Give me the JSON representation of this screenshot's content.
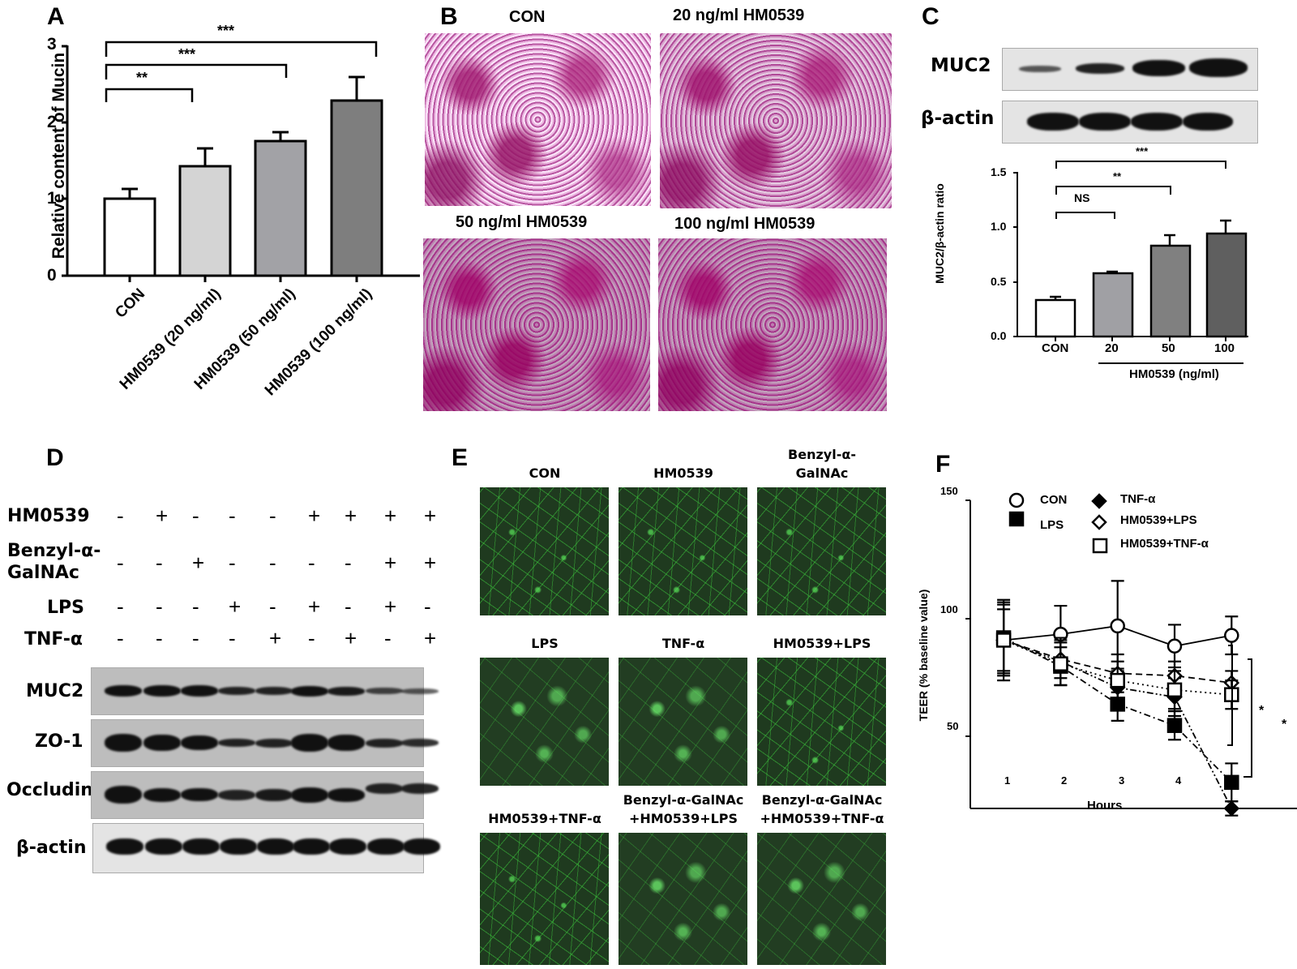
{
  "panels": {
    "A": {
      "letter": "A",
      "ylabel": "Relative content of Mucin",
      "yticks": [
        "0",
        "1",
        "2",
        "3"
      ],
      "categories": [
        "CON",
        "HM0539 (20 ng/ml)",
        "HM0539 (50 ng/ml)",
        "HM0539 (100 ng/ml)"
      ],
      "significance": [
        "**",
        "***",
        "***"
      ]
    },
    "B": {
      "letter": "B",
      "images": [
        {
          "title": "CON"
        },
        {
          "title": "20 ng/ml HM0539"
        },
        {
          "title": "50 ng/ml HM0539"
        },
        {
          "title": "100 ng/ml HM0539"
        }
      ]
    },
    "C": {
      "letter": "C",
      "blot_labels": [
        "MUC2",
        "β-actin"
      ],
      "ylabel": "MUC2/β-actin ratio",
      "yticks": [
        "0.0",
        "0.5",
        "1.0",
        "1.5"
      ],
      "categories": [
        "CON",
        "20",
        "50",
        "100"
      ],
      "group_label": "HM0539 (ng/ml)",
      "significance": [
        "NS",
        "**",
        "***"
      ]
    },
    "D": {
      "letter": "D",
      "treatments": [
        {
          "label": "HM0539",
          "values": [
            "-",
            "+",
            "-",
            "-",
            "-",
            "+",
            "+",
            "+",
            "+"
          ]
        },
        {
          "label": "Benzyl-α-\nGalNAc",
          "label_line1": "Benzyl-α-",
          "label_line2": "GalNAc",
          "values": [
            "-",
            "-",
            "+",
            "-",
            "-",
            "-",
            "-",
            "+",
            "+"
          ]
        },
        {
          "label": "LPS",
          "values": [
            "-",
            "-",
            "-",
            "+",
            "-",
            "+",
            "-",
            "+",
            "-"
          ]
        },
        {
          "label": "TNF-α",
          "values": [
            "-",
            "-",
            "-",
            "-",
            "+",
            "-",
            "+",
            "-",
            "+"
          ]
        }
      ],
      "blots": [
        "MUC2",
        "ZO-1",
        "Occludin",
        "β-actin"
      ]
    },
    "E": {
      "letter": "E",
      "images": [
        {
          "line1": "",
          "line2": "CON"
        },
        {
          "line1": "",
          "line2": "HM0539"
        },
        {
          "line1": "Benzyl-α-",
          "line2": "GalNAc"
        },
        {
          "line1": "",
          "line2": "LPS"
        },
        {
          "line1": "",
          "line2": "TNF-α"
        },
        {
          "line1": "",
          "line2": "HM0539+LPS"
        },
        {
          "line1": "",
          "line2": "HM0539+TNF-α"
        },
        {
          "line1": "Benzyl-α-GalNAc",
          "line2": "+HM0539+LPS"
        },
        {
          "line1": "Benzyl-α-GalNAc",
          "line2": "+HM0539+TNF-α"
        }
      ]
    },
    "F": {
      "letter": "F",
      "ylabel": "TEER (% baseline value)",
      "xlabel": "Hours",
      "yticks": [
        "50",
        "100",
        "150"
      ],
      "xticks": [
        "1",
        "2",
        "3",
        "4",
        "5"
      ],
      "legend": [
        "CON",
        "LPS",
        "TNF-α",
        "HM0539+LPS",
        "HM0539+TNF-α"
      ],
      "significance": [
        "*",
        "*"
      ]
    }
  },
  "chart_data": [
    {
      "panel": "A",
      "type": "bar",
      "title": "",
      "xlabel": "",
      "ylabel": "Relative content of Mucin",
      "categories": [
        "CON",
        "HM0539 (20 ng/ml)",
        "HM0539 (50 ng/ml)",
        "HM0539 (100 ng/ml)"
      ],
      "values": [
        1.0,
        1.43,
        1.77,
        2.3
      ],
      "errors": [
        0.15,
        0.25,
        0.11,
        0.31
      ],
      "colors": [
        "#ffffff",
        "#d4d4d4",
        "#a2a2a6",
        "#7e7e7e"
      ],
      "ylim": [
        0,
        3
      ],
      "yticks": [
        0,
        1,
        2,
        3
      ],
      "grid": false,
      "annotations": [
        {
          "from": "CON",
          "to": "HM0539 (20 ng/ml)",
          "text": "**"
        },
        {
          "from": "CON",
          "to": "HM0539 (50 ng/ml)",
          "text": "***"
        },
        {
          "from": "CON",
          "to": "HM0539 (100 ng/ml)",
          "text": "***"
        }
      ]
    },
    {
      "panel": "C",
      "type": "bar",
      "title": "",
      "xlabel": "HM0539 (ng/ml)",
      "ylabel": "MUC2/β-actin ratio",
      "categories": [
        "CON",
        "20",
        "50",
        "100"
      ],
      "values": [
        0.34,
        0.58,
        0.83,
        0.94
      ],
      "errors": [
        0.03,
        0.02,
        0.1,
        0.12
      ],
      "colors": [
        "#ffffff",
        "#a0a0a4",
        "#808080",
        "#5f5f5f"
      ],
      "ylim": [
        0,
        1.5
      ],
      "yticks": [
        0.0,
        0.5,
        1.0,
        1.5
      ],
      "grid": false,
      "annotations": [
        {
          "from": "CON",
          "to": "20",
          "text": "NS"
        },
        {
          "from": "CON",
          "to": "50",
          "text": "**"
        },
        {
          "from": "CON",
          "to": "100",
          "text": "***"
        }
      ]
    },
    {
      "panel": "F",
      "type": "line",
      "title": "",
      "xlabel": "Hours",
      "ylabel": "TEER (% baseline value)",
      "x": [
        1,
        2,
        3,
        4,
        5
      ],
      "series": [
        {
          "name": "CON",
          "marker": "open-circle",
          "line": "solid",
          "values": [
            101,
            103.5,
            107,
            98.5,
            103
          ],
          "errors": [
            17,
            12,
            19,
            9,
            8
          ]
        },
        {
          "name": "LPS",
          "marker": "filled-square",
          "line": "dash-dot",
          "values": [
            102,
            90,
            74,
            65,
            41
          ],
          "errors": [
            15,
            8,
            7,
            6,
            8
          ]
        },
        {
          "name": "TNF-α",
          "marker": "filled-diamond",
          "line": "dash-dot-dot",
          "values": [
            101,
            92,
            81,
            77,
            30
          ],
          "errors": [
            15,
            10,
            8,
            8,
            3
          ]
        },
        {
          "name": "HM0539+LPS",
          "marker": "open-diamond",
          "line": "dashed",
          "values": [
            101,
            93,
            87,
            86,
            83
          ],
          "errors": [
            13,
            8,
            8,
            6,
            5
          ]
        },
        {
          "name": "HM0539+TNF-α",
          "marker": "open-square-dotted",
          "line": "dotted",
          "values": [
            101,
            91,
            84,
            80,
            78
          ],
          "errors": [
            13,
            9,
            8,
            8,
            6
          ]
        }
      ],
      "ylim": [
        30,
        150
      ],
      "xlim": [
        0.7,
        5.5
      ],
      "yticks": [
        50,
        100,
        150
      ],
      "grid": false,
      "legend_position": "top",
      "annotations": [
        {
          "text": "*",
          "between": [
            "HM0539+LPS",
            "LPS"
          ],
          "at_x": 5
        },
        {
          "text": "*",
          "between": [
            "HM0539+TNF-α",
            "TNF-α"
          ],
          "at_x": 5
        }
      ]
    }
  ]
}
